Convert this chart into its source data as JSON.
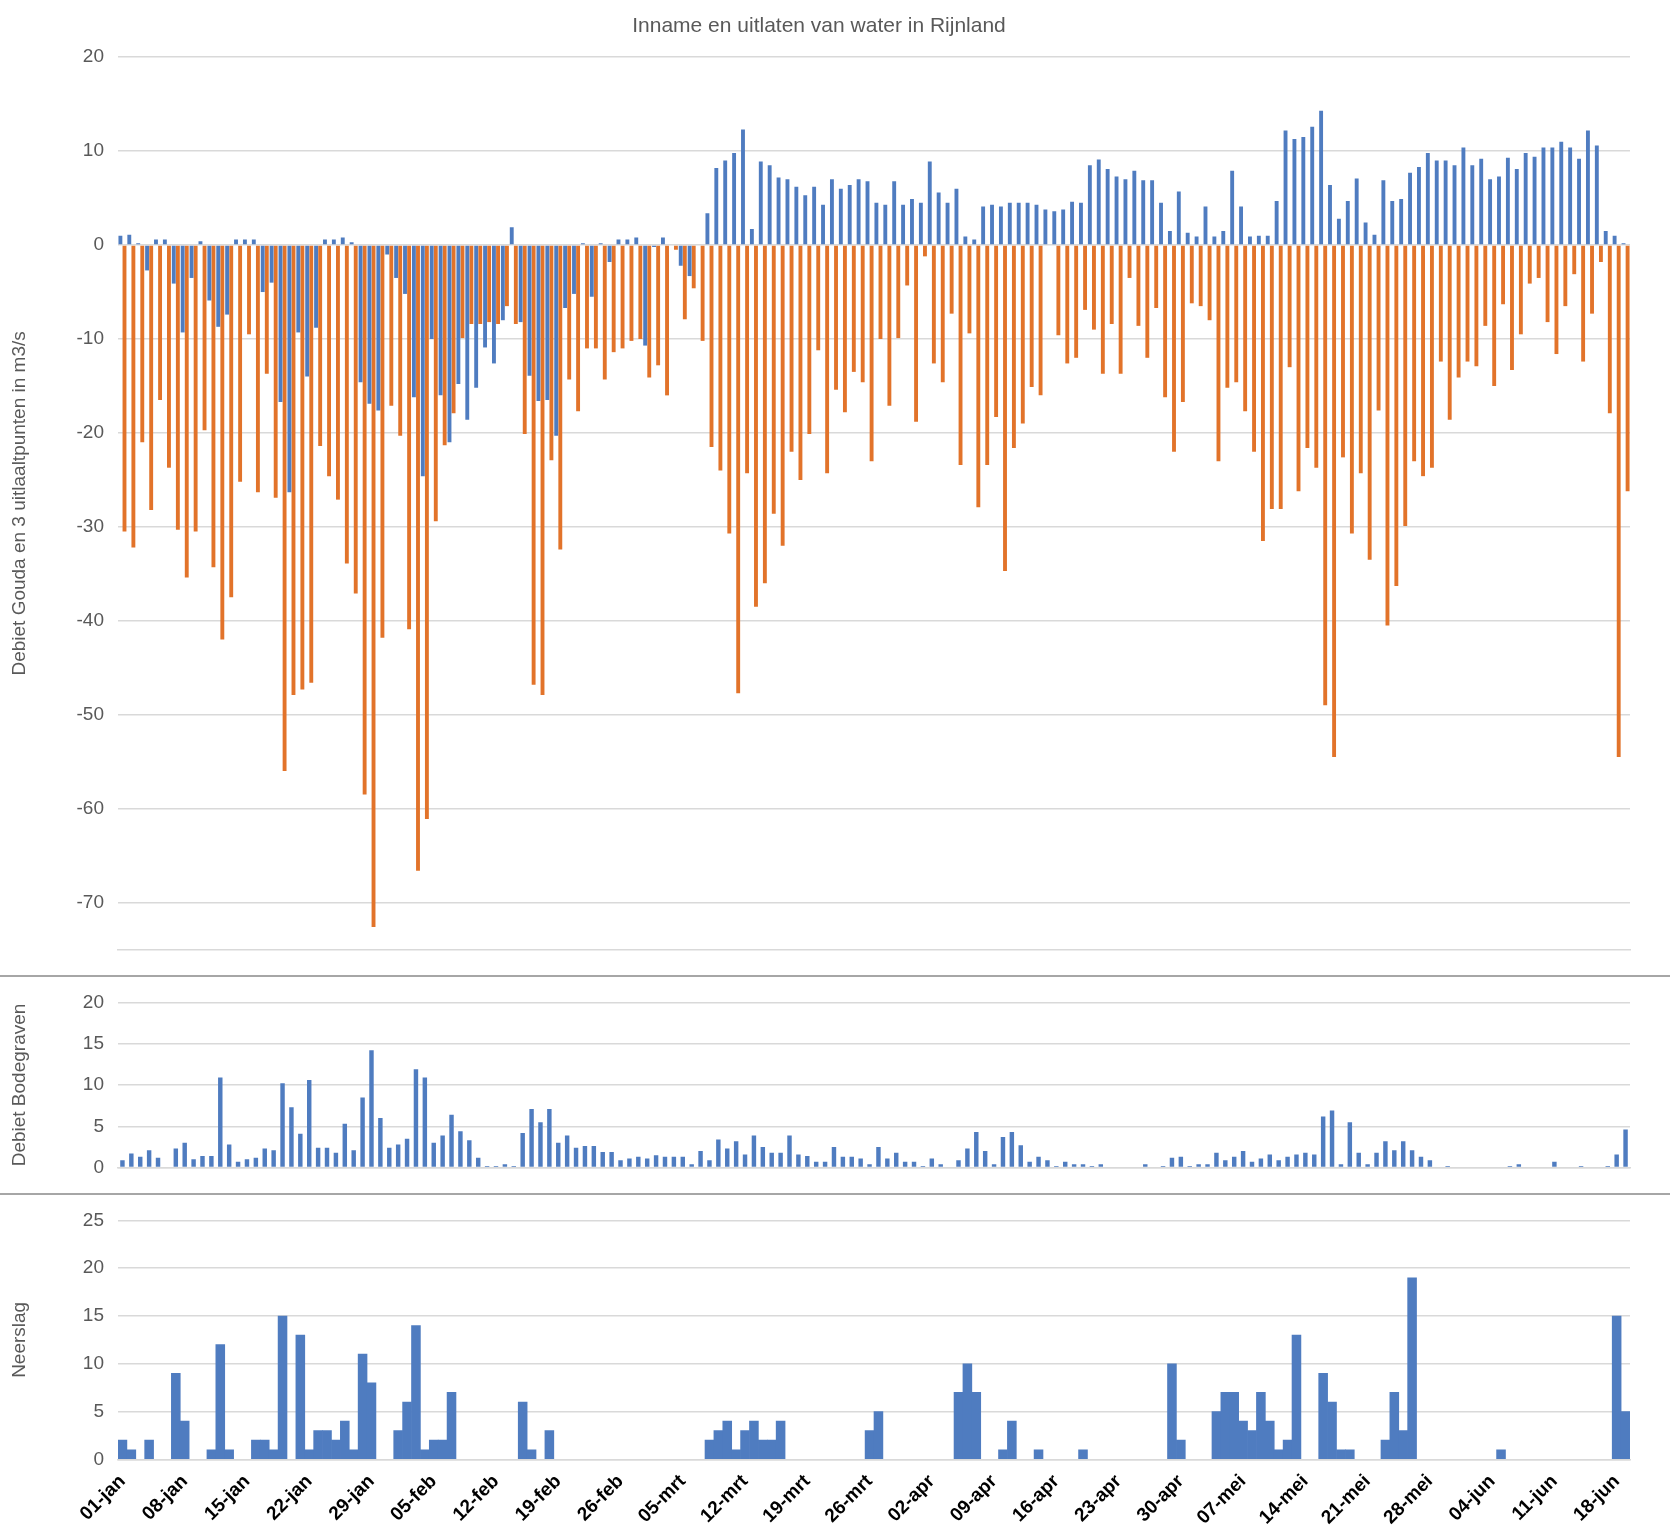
{
  "chart_data": [
    {
      "type": "bar",
      "title": "Inname en uitlaten van water in Rijnland",
      "ylabel": "Debiet Gouda en 3 uitlaaltpunten in m3/s",
      "categories": [
        null,
        null,
        null,
        null,
        null,
        null,
        null,
        null,
        null,
        null,
        null,
        null,
        null,
        null,
        null,
        null,
        null,
        null,
        null,
        null,
        null,
        null,
        null,
        null,
        null,
        null,
        null,
        null,
        null,
        null,
        null,
        null,
        null,
        null,
        null,
        null,
        null,
        null,
        null,
        null,
        null,
        null,
        null,
        null,
        null,
        null,
        null,
        null,
        null,
        null,
        null,
        null,
        null,
        null,
        null,
        null,
        null,
        null,
        null,
        null,
        null,
        null,
        null,
        null,
        null,
        null,
        null,
        null,
        null,
        null,
        null,
        null,
        null,
        null,
        null,
        null,
        null,
        null,
        null,
        null,
        null,
        null,
        null,
        null,
        null,
        null,
        null,
        null,
        null,
        null,
        null,
        null,
        null,
        null,
        null,
        null,
        null,
        null,
        null,
        null,
        null,
        null,
        null,
        null,
        null,
        null,
        null,
        null,
        null,
        null,
        null,
        null,
        null,
        null,
        null,
        null,
        null,
        null,
        null,
        null,
        null,
        null,
        null,
        null,
        null,
        null,
        null,
        null,
        null,
        null,
        null,
        null,
        null,
        null,
        null,
        null,
        null,
        null,
        null,
        null,
        null,
        null,
        null,
        null,
        null,
        null,
        null,
        null,
        null,
        null,
        null,
        null,
        null,
        null,
        null,
        null,
        null,
        null,
        null,
        null,
        null,
        null,
        null,
        null,
        null,
        null,
        null,
        null,
        null,
        null
      ],
      "series": [
        {
          "color": "#4f7cc0",
          "values": [
            1,
            1.1,
            0.2,
            -2.7,
            0.6,
            0.6,
            -4.1,
            -9.3,
            -3.5,
            0.4,
            -5.9,
            -8.7,
            -7.4,
            0.6,
            0.6,
            0.6,
            -5,
            -4,
            -16.7,
            -26.3,
            -9.3,
            -14,
            -8.8,
            0.6,
            0.6,
            0.8,
            0.3,
            -14.6,
            -16.9,
            -17.6,
            -1,
            -3.5,
            -5.2,
            -16.2,
            -24.6,
            -10,
            -16,
            -21,
            -14.8,
            -18.6,
            -15.2,
            -10.9,
            -12.6,
            -8,
            1.9,
            -8.2,
            -13.9,
            -16.6,
            -16.5,
            -20.3,
            -6.7,
            -5.2,
            0.2,
            -5.5,
            0.2,
            -1.8,
            0.6,
            0.6,
            0.8,
            -10.7,
            -0.2,
            0.8,
            null,
            -2.2,
            -3.3,
            null,
            3.4,
            8.2,
            9,
            9.8,
            12.3,
            1.7,
            8.9,
            8.5,
            7.2,
            7,
            6.2,
            5.3,
            6.2,
            4.3,
            7,
            6,
            6.4,
            7,
            6.8,
            4.5,
            4.3,
            6.8,
            4.3,
            4.9,
            4.5,
            8.9,
            5.6,
            4.5,
            6,
            0.9,
            0.6,
            4.1,
            4.3,
            4.1,
            4.5,
            4.5,
            4.5,
            4.3,
            3.8,
            3.6,
            3.8,
            4.6,
            4.5,
            8.5,
            9.1,
            8.1,
            7.3,
            7,
            7.9,
            6.9,
            6.9,
            4.5,
            1.5,
            5.7,
            1.3,
            0.9,
            4.1,
            0.9,
            1.5,
            7.9,
            4.1,
            0.9,
            1,
            1,
            4.7,
            12.2,
            11.3,
            11.5,
            12.6,
            14.3,
            6.4,
            2.8,
            4.7,
            7.1,
            2.4,
            1.1,
            6.9,
            4.7,
            4.9,
            7.7,
            8.3,
            9.8,
            9,
            9,
            8.5,
            10.4,
            8.5,
            9.2,
            7,
            7.3,
            9.3,
            8.1,
            9.8,
            9.4,
            10.4,
            10.4,
            11,
            10.4,
            9.2,
            12.2,
            10.6,
            1.5,
            1,
            0.2
          ]
        },
        {
          "color": "#e2732a",
          "values": [
            -30.5,
            -32.2,
            -21,
            -28.2,
            -16.5,
            -23.7,
            -30.3,
            -35.4,
            -30.5,
            -19.7,
            -34.3,
            -42,
            -37.5,
            -25.2,
            -9.5,
            -26.3,
            -13.7,
            -26.9,
            -56,
            -47.9,
            -47.3,
            -46.6,
            -21.4,
            -24.6,
            -27.1,
            -33.9,
            -37.1,
            -58.5,
            -72.6,
            -41.8,
            -17.1,
            -20.3,
            -40.9,
            -66.6,
            -61.1,
            -29.4,
            -21.3,
            -17.9,
            -9.9,
            -8.4,
            -8.4,
            -8.2,
            -8.4,
            -6.5,
            -8.4,
            -20.1,
            -46.8,
            -47.9,
            -22.9,
            -32.4,
            -14.3,
            -17.7,
            -11,
            -11,
            -14.3,
            -11.4,
            -11,
            -10.2,
            -10,
            -14.1,
            -12.8,
            -16,
            -0.5,
            -7.9,
            -4.6,
            -10.2,
            -21.5,
            -24,
            -30.7,
            -47.7,
            -24.3,
            -38.5,
            -36,
            -28.6,
            -32,
            -22,
            -25,
            -20.1,
            -11.2,
            -24.3,
            -15.4,
            -17.8,
            -13.5,
            -14.6,
            -23,
            -10,
            -17.1,
            -9.9,
            -4.3,
            -18.8,
            -1.2,
            -12.6,
            -14.6,
            -7.3,
            -23.4,
            -9.4,
            -27.9,
            -23.4,
            -18.3,
            -34.7,
            -21.6,
            -19,
            -15.1,
            -16,
            null,
            -9.6,
            -12.6,
            -12,
            -6.9,
            -9,
            -13.7,
            -8.4,
            -13.7,
            -3.5,
            -8.6,
            -12,
            -6.7,
            -16.2,
            -22,
            -16.7,
            -6.2,
            -6.5,
            -8,
            -23,
            -15.2,
            -14.6,
            -17.7,
            -22,
            -31.5,
            -28.1,
            -28.1,
            -13,
            -26.2,
            -21.6,
            -23.7,
            -49,
            -54.5,
            -22.6,
            -30.7,
            -24.3,
            -33.5,
            -17.6,
            -40.5,
            -36.3,
            -29.9,
            -23,
            -24.6,
            -23.7,
            -12.4,
            -18.6,
            -14.1,
            -12.4,
            -12.9,
            -8.6,
            -15,
            -6.3,
            -13.3,
            -9.5,
            -4.1,
            -3.5,
            -8.2,
            -11.6,
            -6.5,
            -3.1,
            -12.4,
            -7.3,
            -1.8,
            -17.9,
            -54.5,
            -26.2
          ]
        }
      ],
      "ylim": [
        -75,
        20
      ],
      "yticks": [
        -70,
        -60,
        -50,
        -40,
        -30,
        -20,
        -10,
        0,
        10,
        20
      ],
      "grid": "y",
      "tick_labels": "y"
    },
    {
      "type": "bar",
      "ylabel": "Debiet Bodegraven",
      "categories": [
        null,
        null,
        null,
        null,
        null,
        null,
        null,
        null,
        null,
        null,
        null,
        null,
        null,
        null,
        null,
        null,
        null,
        null,
        null,
        null,
        null,
        null,
        null,
        null,
        null,
        null,
        null,
        null,
        null,
        null,
        null,
        null,
        null,
        null,
        null,
        null,
        null,
        null,
        null,
        null,
        null,
        null,
        null,
        null,
        null,
        null,
        null,
        null,
        null,
        null,
        null,
        null,
        null,
        null,
        null,
        null,
        null,
        null,
        null,
        null,
        null,
        null,
        null,
        null,
        null,
        null,
        null,
        null,
        null,
        null,
        null,
        null,
        null,
        null,
        null,
        null,
        null,
        null,
        null,
        null,
        null,
        null,
        null,
        null,
        null,
        null,
        null,
        null,
        null,
        null,
        null,
        null,
        null,
        null,
        null,
        null,
        null,
        null,
        null,
        null,
        null,
        null,
        null,
        null,
        null,
        null,
        null,
        null,
        null,
        null,
        null,
        null,
        null,
        null,
        null,
        null,
        null,
        null,
        null,
        null,
        null,
        null,
        null,
        null,
        null,
        null,
        null,
        null,
        null,
        null,
        null,
        null,
        null,
        null,
        null,
        null,
        null,
        null,
        null,
        null,
        null,
        null,
        null,
        null,
        null,
        null,
        null,
        null,
        null,
        null,
        null,
        null,
        null,
        null,
        null,
        null,
        null,
        null,
        null,
        null,
        null,
        null,
        null,
        null,
        null,
        null,
        null,
        null,
        null,
        null
      ],
      "color": "#4f7cc0",
      "values": [
        0.9,
        1.7,
        1.3,
        2.1,
        1.2,
        null,
        2.3,
        3,
        1,
        1.4,
        1.4,
        10.9,
        2.8,
        0.7,
        1,
        1.2,
        2.3,
        2.1,
        10.2,
        7.3,
        4.1,
        10.6,
        2.4,
        2.4,
        1.8,
        5.3,
        2.1,
        8.5,
        14.2,
        6,
        2.4,
        2.8,
        3.5,
        11.9,
        10.9,
        3,
        3.9,
        6.4,
        4.4,
        3.3,
        1.2,
        0.2,
        0.2,
        0.4,
        0.2,
        4.2,
        7.1,
        5.5,
        7.1,
        3,
        3.9,
        2.4,
        2.6,
        2.6,
        1.9,
        1.9,
        0.9,
        1.1,
        1.3,
        1.1,
        1.5,
        1.3,
        1.3,
        1.3,
        0.4,
        2,
        0.9,
        3.4,
        2.3,
        3.2,
        1.6,
        3.9,
        2.5,
        1.8,
        1.8,
        3.9,
        1.6,
        1.4,
        0.7,
        0.7,
        2.5,
        1.3,
        1.3,
        1.1,
        0.4,
        2.5,
        1.1,
        1.8,
        0.7,
        0.7,
        0.2,
        1.1,
        0.4,
        null,
        0.9,
        2.3,
        4.3,
        2,
        0.4,
        3.7,
        4.3,
        2.7,
        0.7,
        1.3,
        0.9,
        0.2,
        0.7,
        0.4,
        0.4,
        0.2,
        0.4,
        null,
        null,
        null,
        null,
        0.4,
        null,
        0.2,
        1.2,
        1.3,
        0.2,
        0.4,
        0.4,
        1.8,
        0.9,
        1.3,
        2,
        0.7,
        1.1,
        1.6,
        0.9,
        1.3,
        1.6,
        1.8,
        1.6,
        6.2,
        6.9,
        0.4,
        5.5,
        1.8,
        0.4,
        1.8,
        3.2,
        2.1,
        3.2,
        2.1,
        1.3,
        0.9,
        null,
        0.2,
        null,
        null,
        null,
        null,
        null,
        null,
        0.2,
        0.4,
        null,
        null,
        null,
        0.7,
        null,
        null,
        0.2,
        null,
        null,
        0.2,
        1.6,
        4.6
      ],
      "ylim": [
        0,
        20
      ],
      "yticks": [
        0,
        5,
        10,
        15,
        20
      ],
      "grid": "y",
      "tick_labels": "y"
    },
    {
      "type": "bar",
      "ylabel": "Neerslag",
      "categories": [
        "01-jan",
        null,
        null,
        null,
        null,
        null,
        null,
        "08-jan",
        null,
        null,
        null,
        null,
        null,
        null,
        "15-jan",
        null,
        null,
        null,
        null,
        null,
        null,
        "22-jan",
        null,
        null,
        null,
        null,
        null,
        null,
        "29-jan",
        null,
        null,
        null,
        null,
        null,
        null,
        "05-feb",
        null,
        null,
        null,
        null,
        null,
        null,
        "12-feb",
        null,
        null,
        null,
        null,
        null,
        null,
        "19-feb",
        null,
        null,
        null,
        null,
        null,
        null,
        "26-feb",
        null,
        null,
        null,
        null,
        null,
        null,
        "05-mrt",
        null,
        null,
        null,
        null,
        null,
        null,
        "12-mrt",
        null,
        null,
        null,
        null,
        null,
        null,
        "19-mrt",
        null,
        null,
        null,
        null,
        null,
        null,
        "26-mrt",
        null,
        null,
        null,
        null,
        null,
        null,
        "02-apr",
        null,
        null,
        null,
        null,
        null,
        null,
        "09-apr",
        null,
        null,
        null,
        null,
        null,
        null,
        "16-apr",
        null,
        null,
        null,
        null,
        null,
        null,
        "23-apr",
        null,
        null,
        null,
        null,
        null,
        null,
        "30-apr",
        null,
        null,
        null,
        null,
        null,
        null,
        "07-mei",
        null,
        null,
        null,
        null,
        null,
        null,
        "14-mei",
        null,
        null,
        null,
        null,
        null,
        null,
        "21-mei",
        null,
        null,
        null,
        null,
        null,
        null,
        "28-mei",
        null,
        null,
        null,
        null,
        null,
        null,
        "04-jun",
        null,
        null,
        null,
        null,
        null,
        null,
        "11-jun",
        null,
        null,
        null,
        null,
        null,
        null,
        "18-jun",
        null
      ],
      "color": "#4f7cc0",
      "values": [
        2,
        1,
        null,
        2,
        null,
        null,
        9,
        4,
        null,
        null,
        1,
        12,
        1,
        null,
        null,
        2,
        2,
        1,
        15,
        null,
        13,
        1,
        3,
        3,
        2,
        4,
        1,
        11,
        8,
        null,
        null,
        3,
        6,
        14,
        1,
        2,
        2,
        7,
        null,
        null,
        null,
        null,
        null,
        null,
        null,
        6,
        1,
        null,
        3,
        null,
        null,
        null,
        null,
        null,
        null,
        null,
        null,
        null,
        null,
        null,
        null,
        null,
        null,
        null,
        null,
        null,
        2,
        3,
        4,
        1,
        3,
        4,
        2,
        2,
        4,
        null,
        null,
        null,
        null,
        null,
        null,
        null,
        null,
        null,
        3,
        5,
        null,
        null,
        null,
        null,
        null,
        null,
        null,
        null,
        7,
        10,
        7,
        null,
        null,
        1,
        4,
        null,
        null,
        1,
        null,
        null,
        null,
        null,
        1,
        null,
        null,
        null,
        null,
        null,
        null,
        null,
        null,
        null,
        10,
        2,
        null,
        null,
        null,
        5,
        7,
        7,
        4,
        3,
        7,
        4,
        1,
        2,
        13,
        null,
        null,
        9,
        6,
        1,
        1,
        null,
        null,
        null,
        2,
        7,
        3,
        19,
        null,
        null,
        null,
        null,
        null,
        null,
        null,
        null,
        null,
        1,
        null,
        null,
        null,
        null,
        null,
        null,
        null,
        null,
        null,
        null,
        null,
        null,
        15,
        5
      ],
      "ylim": [
        0,
        25
      ],
      "yticks": [
        0,
        5,
        10,
        15,
        20,
        25
      ],
      "grid": "y"
    }
  ]
}
